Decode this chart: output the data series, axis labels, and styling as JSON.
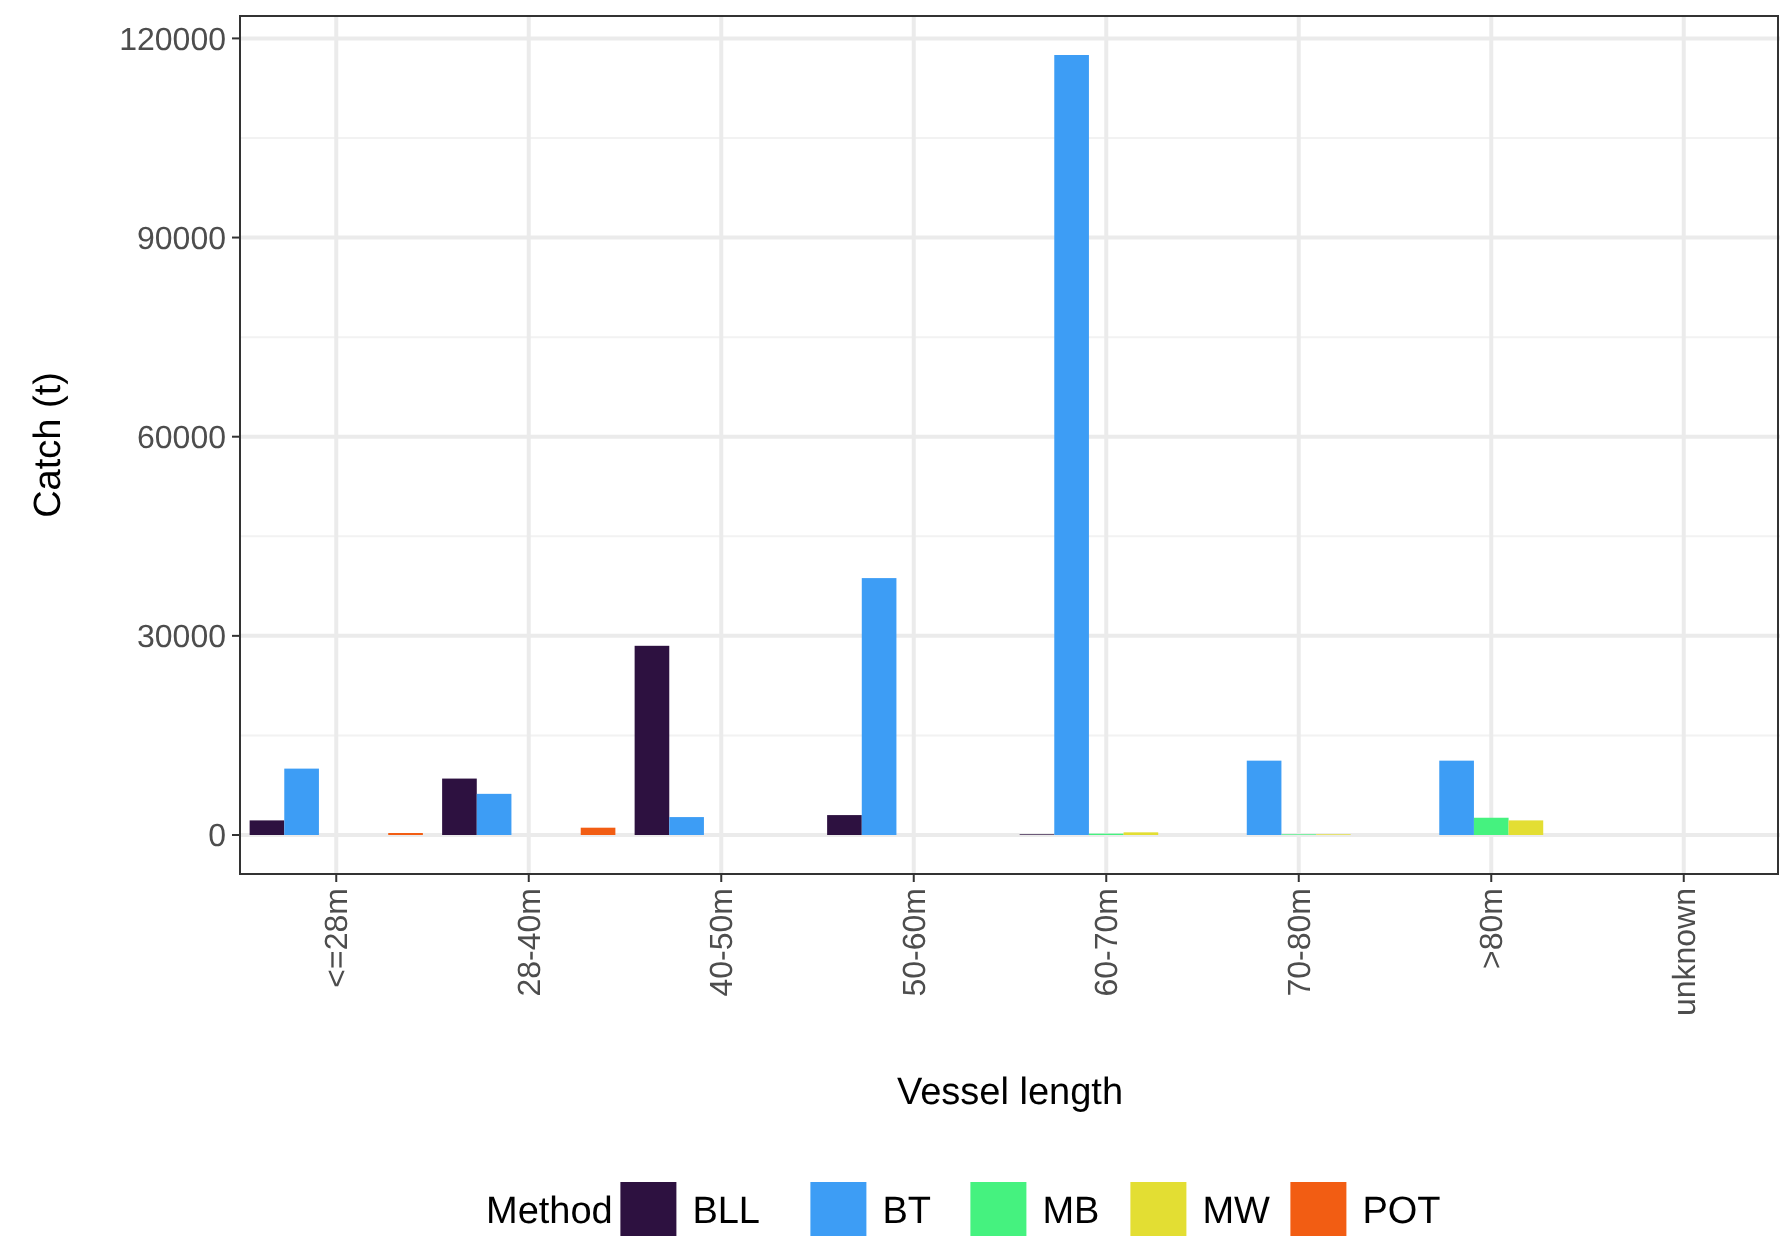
{
  "chart_data": {
    "type": "bar",
    "xlabel": "Vessel length",
    "ylabel": "Catch (t)",
    "legend_title": "Method",
    "categories": [
      "<=28m",
      "28-40m",
      "40-50m",
      "50-60m",
      "60-70m",
      "70-80m",
      ">80m",
      "unknown"
    ],
    "series": [
      {
        "name": "BLL",
        "color": "#2d1140",
        "values": [
          2200,
          8500,
          28500,
          3000,
          100,
          null,
          null,
          null
        ]
      },
      {
        "name": "BT",
        "color": "#3d9df5",
        "values": [
          10000,
          6200,
          2700,
          38700,
          117500,
          11200,
          11200,
          null
        ]
      },
      {
        "name": "MB",
        "color": "#45f27f",
        "values": [
          null,
          null,
          null,
          null,
          200,
          100,
          2600,
          null
        ]
      },
      {
        "name": "MW",
        "color": "#e3de33",
        "values": [
          null,
          null,
          null,
          null,
          400,
          100,
          2200,
          null
        ]
      },
      {
        "name": "POT",
        "color": "#f25d13",
        "values": [
          300,
          1100,
          null,
          null,
          null,
          null,
          null,
          null
        ]
      }
    ],
    "ylim": [
      -5875,
      123375
    ],
    "yticks": [
      0,
      30000,
      60000,
      90000,
      120000
    ],
    "grid": true,
    "legend": "bottom"
  }
}
